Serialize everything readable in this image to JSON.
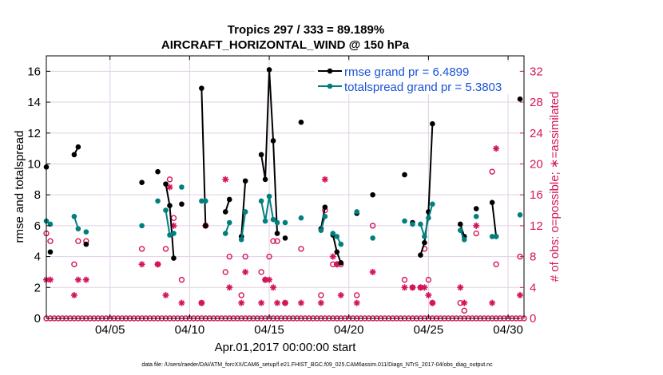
{
  "chart_data": {
    "type": "line",
    "title": "Tropics 297 / 333 = 89.189%",
    "subtitle": "AIRCRAFT_HORIZONTAL_WIND @ 150 hPa",
    "xlabel": "Apr.01,2017 00:00:00 start",
    "ylabel": "rmse and totalspread",
    "ylabel_right": "# of obs: o=possible; ∗=assimilated",
    "footer": "data file: /Users/raeder/DAI/ATM_forcXX/CAM6_setup/f.e21.FHIST_BGC.f09_025.CAM6assim.011/Diags_NTrS_2017-04/obs_diag_output.nc",
    "xlim": [
      1,
      31
    ],
    "ylim": [
      0,
      17
    ],
    "ylim_right": [
      0,
      34
    ],
    "x_ticks": [
      5,
      10,
      15,
      20,
      25,
      30
    ],
    "x_tick_labels": [
      "04/05",
      "04/10",
      "04/15",
      "04/20",
      "04/25",
      "04/30"
    ],
    "y_ticks": [
      0,
      2,
      4,
      6,
      8,
      10,
      12,
      14,
      16
    ],
    "y_tick_labels": [
      "0",
      "2",
      "4",
      "6",
      "8",
      "10",
      "12",
      "14",
      "16"
    ],
    "y_right_ticks": [
      0,
      4,
      8,
      12,
      16,
      20,
      24,
      28,
      32
    ],
    "y_right_tick_labels": [
      "0",
      "4",
      "8",
      "12",
      "16",
      "20",
      "24",
      "28",
      "32"
    ],
    "grid": true,
    "legend_position": "top-right",
    "colors": {
      "rmse": "#000000",
      "spread": "#007f7f",
      "obs": "#d4145a",
      "legend_text": "#1a52d6",
      "grid": "#e0d0e6"
    },
    "series": [
      {
        "name": "rmse grand pr = 6.4899",
        "color": "#000000",
        "points": [
          [
            1.0,
            9.8
          ],
          [
            1.25,
            4.3
          ],
          [
            2.75,
            10.6
          ],
          [
            3.0,
            11.1
          ],
          [
            3.5,
            4.8
          ],
          [
            7.0,
            8.8
          ],
          [
            8.0,
            9.5
          ],
          [
            8.5,
            8.7
          ],
          [
            8.75,
            7.3
          ],
          [
            9.0,
            3.9
          ],
          [
            9.5,
            7.4
          ],
          [
            10.75,
            14.9
          ],
          [
            11.0,
            6.0
          ],
          [
            12.25,
            6.9
          ],
          [
            12.5,
            7.7
          ],
          [
            13.25,
            5.3
          ],
          [
            13.5,
            8.9
          ],
          [
            14.5,
            10.6
          ],
          [
            14.75,
            9.0
          ],
          [
            15.0,
            16.1
          ],
          [
            15.25,
            11.5
          ],
          [
            15.5,
            5.5
          ],
          [
            16.0,
            5.2
          ],
          [
            17.0,
            12.7
          ],
          [
            18.25,
            5.8
          ],
          [
            18.5,
            7.2
          ],
          [
            19.0,
            5.4
          ],
          [
            19.25,
            4.3
          ],
          [
            19.5,
            3.6
          ],
          [
            20.5,
            6.8
          ],
          [
            21.5,
            8.0
          ],
          [
            23.5,
            9.3
          ],
          [
            24.0,
            6.2
          ],
          [
            24.5,
            4.1
          ],
          [
            24.75,
            4.9
          ],
          [
            25.0,
            6.9
          ],
          [
            25.25,
            12.6
          ],
          [
            27.0,
            6.1
          ],
          [
            27.25,
            5.3
          ],
          [
            28.0,
            7.1
          ],
          [
            29.0,
            7.5
          ],
          [
            29.25,
            5.3
          ],
          [
            30.75,
            14.2
          ]
        ],
        "runs": [
          [
            2.75,
            3.0
          ],
          [
            8.5,
            9.0
          ],
          [
            10.75,
            11.0
          ],
          [
            12.25,
            12.5
          ],
          [
            13.25,
            13.5
          ],
          [
            14.5,
            15.5
          ],
          [
            18.25,
            18.5
          ],
          [
            19.0,
            19.5
          ],
          [
            24.5,
            25.25
          ],
          [
            27.0,
            27.25
          ],
          [
            29.0,
            29.25
          ]
        ]
      },
      {
        "name": "totalspread grand pr = 5.3803",
        "color": "#007f7f",
        "points": [
          [
            1.0,
            6.3
          ],
          [
            1.25,
            6.1
          ],
          [
            2.75,
            6.6
          ],
          [
            3.0,
            5.8
          ],
          [
            3.5,
            5.6
          ],
          [
            7.0,
            6.0
          ],
          [
            8.0,
            7.6
          ],
          [
            8.5,
            7.0
          ],
          [
            8.75,
            5.4
          ],
          [
            9.0,
            5.5
          ],
          [
            9.5,
            8.5
          ],
          [
            10.75,
            7.6
          ],
          [
            11.0,
            7.6
          ],
          [
            12.25,
            5.5
          ],
          [
            12.5,
            6.2
          ],
          [
            13.25,
            5.1
          ],
          [
            13.5,
            6.9
          ],
          [
            14.5,
            7.6
          ],
          [
            14.75,
            6.3
          ],
          [
            15.0,
            7.9
          ],
          [
            15.25,
            6.4
          ],
          [
            15.5,
            6.2
          ],
          [
            16.0,
            6.2
          ],
          [
            17.0,
            6.5
          ],
          [
            18.25,
            5.7
          ],
          [
            18.5,
            6.6
          ],
          [
            19.0,
            5.5
          ],
          [
            19.25,
            5.3
          ],
          [
            19.5,
            4.8
          ],
          [
            20.5,
            6.9
          ],
          [
            21.5,
            5.2
          ],
          [
            23.5,
            6.3
          ],
          [
            24.0,
            6.1
          ],
          [
            24.5,
            6.1
          ],
          [
            24.75,
            5.3
          ],
          [
            25.0,
            6.5
          ],
          [
            25.25,
            7.4
          ],
          [
            27.0,
            5.7
          ],
          [
            27.25,
            5.1
          ],
          [
            28.0,
            6.6
          ],
          [
            29.0,
            5.3
          ],
          [
            29.25,
            5.3
          ],
          [
            30.75,
            6.7
          ]
        ],
        "runs": [
          [
            2.75,
            3.0
          ],
          [
            8.5,
            9.0
          ],
          [
            10.75,
            11.0
          ],
          [
            12.25,
            12.5
          ],
          [
            13.25,
            13.5
          ],
          [
            14.5,
            15.5
          ],
          [
            18.25,
            18.5
          ],
          [
            19.0,
            19.5
          ],
          [
            24.5,
            25.25
          ],
          [
            27.0,
            27.25
          ],
          [
            29.0,
            29.25
          ]
        ]
      }
    ],
    "obs_possible": [
      [
        1.0,
        11
      ],
      [
        1.25,
        10
      ],
      [
        2.75,
        7
      ],
      [
        3.0,
        10
      ],
      [
        3.5,
        10
      ],
      [
        7.0,
        9
      ],
      [
        8.0,
        7
      ],
      [
        8.5,
        9
      ],
      [
        8.75,
        18
      ],
      [
        9.0,
        13
      ],
      [
        9.5,
        5
      ],
      [
        10.75,
        2
      ],
      [
        11.0,
        12
      ],
      [
        12.25,
        6
      ],
      [
        12.5,
        8
      ],
      [
        13.25,
        3
      ],
      [
        13.5,
        8
      ],
      [
        14.5,
        6
      ],
      [
        14.75,
        5
      ],
      [
        15.0,
        8
      ],
      [
        15.25,
        10
      ],
      [
        15.5,
        10
      ],
      [
        16.0,
        2
      ],
      [
        17.0,
        9
      ],
      [
        18.25,
        3
      ],
      [
        18.5,
        14
      ],
      [
        19.0,
        7
      ],
      [
        19.25,
        7
      ],
      [
        19.5,
        7
      ],
      [
        20.5,
        3
      ],
      [
        21.5,
        12
      ],
      [
        23.5,
        5
      ],
      [
        24.0,
        4
      ],
      [
        24.5,
        4
      ],
      [
        24.75,
        9
      ],
      [
        25.0,
        5
      ],
      [
        25.25,
        2
      ],
      [
        27.0,
        2
      ],
      [
        27.25,
        1
      ],
      [
        28.0,
        11
      ],
      [
        29.0,
        19
      ],
      [
        29.25,
        7
      ],
      [
        30.75,
        8
      ]
    ],
    "obs_assimilated": [
      [
        1.0,
        5
      ],
      [
        1.25,
        5
      ],
      [
        2.75,
        3
      ],
      [
        3.0,
        5
      ],
      [
        3.5,
        5
      ],
      [
        7.0,
        7
      ],
      [
        8.0,
        7
      ],
      [
        8.5,
        3
      ],
      [
        8.75,
        17
      ],
      [
        9.0,
        12
      ],
      [
        9.5,
        2
      ],
      [
        10.75,
        2
      ],
      [
        11.0,
        12
      ],
      [
        12.25,
        18
      ],
      [
        12.5,
        4
      ],
      [
        13.25,
        2
      ],
      [
        13.5,
        6
      ],
      [
        14.5,
        2
      ],
      [
        14.75,
        5
      ],
      [
        15.0,
        5
      ],
      [
        15.25,
        4
      ],
      [
        15.5,
        2
      ],
      [
        16.0,
        2
      ],
      [
        17.0,
        2
      ],
      [
        18.25,
        2
      ],
      [
        18.5,
        18
      ],
      [
        19.0,
        8
      ],
      [
        19.25,
        7
      ],
      [
        19.5,
        3
      ],
      [
        20.5,
        2
      ],
      [
        21.5,
        6
      ],
      [
        23.5,
        4
      ],
      [
        24.0,
        4
      ],
      [
        24.5,
        4
      ],
      [
        24.75,
        4
      ],
      [
        25.0,
        3
      ],
      [
        25.25,
        2
      ],
      [
        27.0,
        4
      ],
      [
        27.25,
        2
      ],
      [
        28.0,
        12
      ],
      [
        29.0,
        2
      ],
      [
        29.25,
        22
      ],
      [
        30.75,
        3
      ]
    ],
    "obs_zero_start": 1.0,
    "obs_zero_end": 31.0,
    "obs_zero_step": 0.25
  }
}
